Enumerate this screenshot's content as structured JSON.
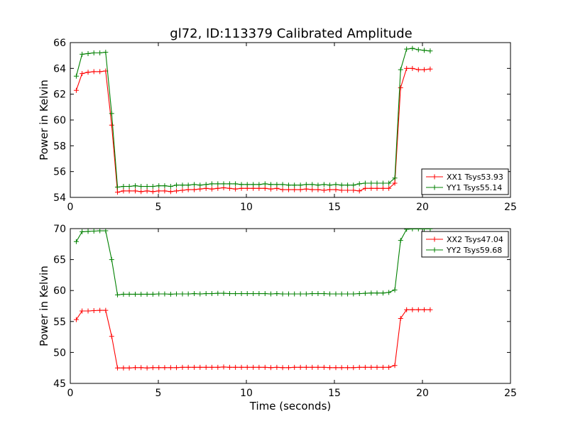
{
  "chart_data": [
    {
      "type": "line",
      "title": "gl72, ID:113379 Calibrated Amplitude",
      "xlabel": "",
      "ylabel": "Power in Kelvin",
      "xlim": [
        0,
        25
      ],
      "ylim": [
        54,
        66
      ],
      "xticks": [
        0,
        5,
        10,
        15,
        20,
        25
      ],
      "yticks": [
        54,
        56,
        58,
        60,
        62,
        64,
        66
      ],
      "grid": false,
      "legend": "lower-right",
      "series": [
        {
          "name": "XX1 Tsys53.93",
          "color": "#ff0000",
          "x": [
            0.34,
            0.67,
            1.01,
            1.34,
            1.68,
            2.01,
            2.35,
            2.68,
            3.02,
            3.35,
            3.69,
            4.02,
            4.36,
            4.69,
            5.03,
            5.36,
            5.7,
            6.03,
            6.37,
            6.7,
            7.04,
            7.37,
            7.71,
            8.04,
            8.38,
            8.71,
            9.05,
            9.38,
            9.72,
            10.05,
            10.39,
            10.72,
            11.06,
            11.39,
            11.73,
            12.06,
            12.4,
            12.73,
            13.07,
            13.4,
            13.74,
            14.07,
            14.41,
            14.74,
            15.08,
            15.41,
            15.75,
            16.08,
            16.42,
            16.75,
            17.09,
            17.42,
            17.76,
            18.09,
            18.43,
            18.76,
            19.1,
            19.43,
            19.77,
            20.1,
            20.44
          ],
          "y": [
            62.3,
            63.6,
            63.7,
            63.75,
            63.75,
            63.8,
            59.6,
            54.4,
            54.5,
            54.5,
            54.5,
            54.45,
            54.5,
            54.45,
            54.5,
            54.5,
            54.45,
            54.5,
            54.55,
            54.6,
            54.6,
            54.65,
            54.7,
            54.65,
            54.7,
            54.75,
            54.7,
            54.65,
            54.7,
            54.7,
            54.7,
            54.7,
            54.7,
            54.65,
            54.7,
            54.6,
            54.6,
            54.6,
            54.6,
            54.65,
            54.6,
            54.6,
            54.55,
            54.6,
            54.6,
            54.55,
            54.55,
            54.55,
            54.5,
            54.7,
            54.7,
            54.7,
            54.7,
            54.7,
            55.1,
            62.5,
            64.0,
            64.0,
            63.9,
            63.9,
            63.95
          ]
        },
        {
          "name": "YY1 Tsys55.14",
          "color": "#008000",
          "x": [
            0.34,
            0.67,
            1.01,
            1.34,
            1.68,
            2.01,
            2.35,
            2.68,
            3.02,
            3.35,
            3.69,
            4.02,
            4.36,
            4.69,
            5.03,
            5.36,
            5.7,
            6.03,
            6.37,
            6.7,
            7.04,
            7.37,
            7.71,
            8.04,
            8.38,
            8.71,
            9.05,
            9.38,
            9.72,
            10.05,
            10.39,
            10.72,
            11.06,
            11.39,
            11.73,
            12.06,
            12.4,
            12.73,
            13.07,
            13.4,
            13.74,
            14.07,
            14.41,
            14.74,
            15.08,
            15.41,
            15.75,
            16.08,
            16.42,
            16.75,
            17.09,
            17.42,
            17.76,
            18.09,
            18.43,
            18.76,
            19.1,
            19.43,
            19.77,
            20.1,
            20.44
          ],
          "y": [
            63.4,
            65.1,
            65.15,
            65.2,
            65.2,
            65.25,
            60.5,
            54.8,
            54.85,
            54.85,
            54.9,
            54.85,
            54.85,
            54.85,
            54.9,
            54.9,
            54.85,
            54.95,
            54.95,
            54.95,
            55.0,
            54.95,
            55.0,
            55.05,
            55.05,
            55.05,
            55.05,
            55.05,
            55.0,
            55.0,
            55.0,
            55.0,
            55.05,
            55.0,
            55.0,
            55.0,
            54.95,
            54.95,
            54.95,
            55.0,
            55.0,
            54.95,
            55.0,
            54.95,
            55.0,
            54.95,
            54.95,
            54.95,
            55.05,
            55.1,
            55.1,
            55.1,
            55.1,
            55.1,
            55.5,
            63.9,
            65.5,
            65.55,
            65.45,
            65.4,
            65.35
          ]
        }
      ]
    },
    {
      "type": "line",
      "title": "",
      "xlabel": "Time (seconds)",
      "ylabel": "Power in Kelvin",
      "xlim": [
        0,
        25
      ],
      "ylim": [
        45,
        70
      ],
      "xticks": [
        0,
        5,
        10,
        15,
        20,
        25
      ],
      "yticks": [
        45,
        50,
        55,
        60,
        65,
        70
      ],
      "grid": false,
      "legend": "top-right",
      "series": [
        {
          "name": "XX2 Tsys47.04",
          "color": "#ff0000",
          "x": [
            0.34,
            0.67,
            1.01,
            1.34,
            1.68,
            2.01,
            2.35,
            2.68,
            3.02,
            3.35,
            3.69,
            4.02,
            4.36,
            4.69,
            5.03,
            5.36,
            5.7,
            6.03,
            6.37,
            6.7,
            7.04,
            7.37,
            7.71,
            8.04,
            8.38,
            8.71,
            9.05,
            9.38,
            9.72,
            10.05,
            10.39,
            10.72,
            11.06,
            11.39,
            11.73,
            12.06,
            12.4,
            12.73,
            13.07,
            13.4,
            13.74,
            14.07,
            14.41,
            14.74,
            15.08,
            15.41,
            15.75,
            16.08,
            16.42,
            16.75,
            17.09,
            17.42,
            17.76,
            18.09,
            18.43,
            18.76,
            19.1,
            19.43,
            19.77,
            20.1,
            20.44
          ],
          "y": [
            55.3,
            56.7,
            56.7,
            56.75,
            56.8,
            56.8,
            52.6,
            47.5,
            47.5,
            47.5,
            47.55,
            47.55,
            47.5,
            47.55,
            47.55,
            47.55,
            47.55,
            47.55,
            47.6,
            47.6,
            47.6,
            47.6,
            47.6,
            47.6,
            47.6,
            47.65,
            47.6,
            47.6,
            47.6,
            47.6,
            47.6,
            47.6,
            47.6,
            47.55,
            47.6,
            47.55,
            47.55,
            47.6,
            47.6,
            47.6,
            47.6,
            47.6,
            47.6,
            47.55,
            47.55,
            47.55,
            47.55,
            47.55,
            47.6,
            47.6,
            47.6,
            47.6,
            47.6,
            47.6,
            47.9,
            55.5,
            56.9,
            56.9,
            56.9,
            56.9,
            56.9
          ]
        },
        {
          "name": "YY2 Tsys59.68",
          "color": "#008000",
          "x": [
            0.34,
            0.67,
            1.01,
            1.34,
            1.68,
            2.01,
            2.35,
            2.68,
            3.02,
            3.35,
            3.69,
            4.02,
            4.36,
            4.69,
            5.03,
            5.36,
            5.7,
            6.03,
            6.37,
            6.7,
            7.04,
            7.37,
            7.71,
            8.04,
            8.38,
            8.71,
            9.05,
            9.38,
            9.72,
            10.05,
            10.39,
            10.72,
            11.06,
            11.39,
            11.73,
            12.06,
            12.4,
            12.73,
            13.07,
            13.4,
            13.74,
            14.07,
            14.41,
            14.74,
            15.08,
            15.41,
            15.75,
            16.08,
            16.42,
            16.75,
            17.09,
            17.42,
            17.76,
            18.09,
            18.43,
            18.76,
            19.1,
            19.43,
            19.77,
            20.1,
            20.44
          ],
          "y": [
            67.9,
            69.5,
            69.55,
            69.6,
            69.65,
            69.65,
            65.0,
            59.3,
            59.4,
            59.4,
            59.4,
            59.4,
            59.4,
            59.4,
            59.45,
            59.45,
            59.4,
            59.45,
            59.45,
            59.45,
            59.5,
            59.45,
            59.5,
            59.5,
            59.55,
            59.55,
            59.5,
            59.5,
            59.5,
            59.5,
            59.5,
            59.5,
            59.5,
            59.45,
            59.5,
            59.45,
            59.45,
            59.45,
            59.45,
            59.45,
            59.5,
            59.5,
            59.5,
            59.45,
            59.45,
            59.45,
            59.45,
            59.45,
            59.5,
            59.55,
            59.6,
            59.6,
            59.6,
            59.7,
            60.1,
            68.1,
            69.9,
            69.95,
            69.95,
            69.95,
            69.95
          ]
        }
      ]
    }
  ]
}
